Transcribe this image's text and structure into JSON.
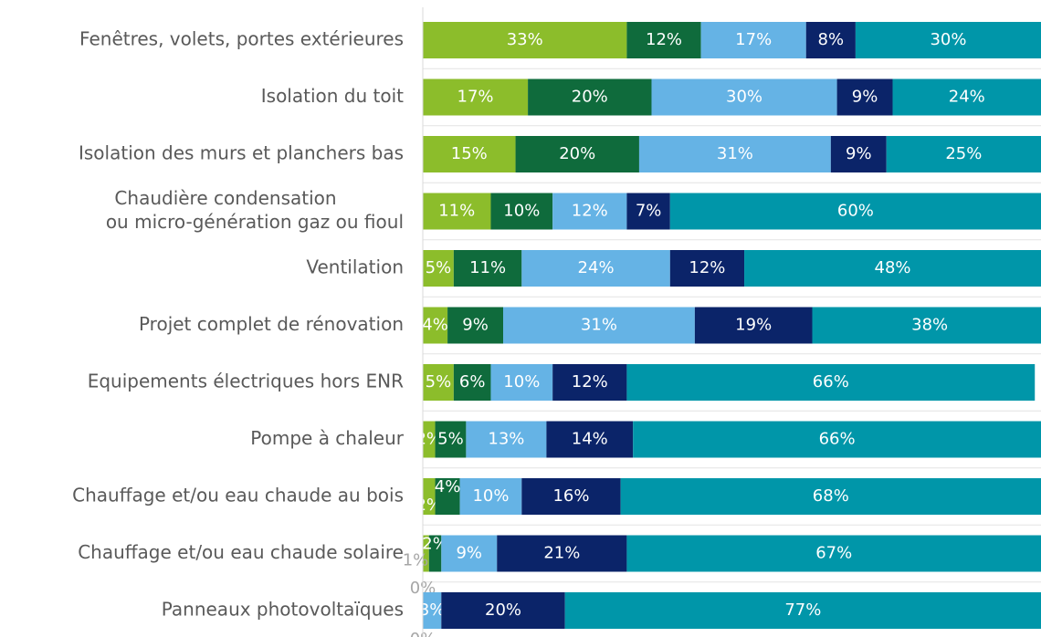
{
  "chart_data": {
    "type": "stacked-bar-horizontal",
    "categories": [
      "Fenêtres, volets, portes extérieures",
      "Isolation du toit",
      "Isolation des murs et planchers bas",
      [
        "Chaudière condensation",
        "ou micro-génération gaz ou fioul"
      ],
      "Ventilation",
      "Projet complet de rénovation",
      "Equipements électriques hors ENR",
      "Pompe à chaleur",
      "Chauffage et/ou eau chaude au bois",
      "Chauffage et/ou eau chaude solaire",
      "Panneaux photovoltaïques"
    ],
    "xlim": [
      0,
      100
    ],
    "series": [
      {
        "color": "#8cbd2b",
        "values": [
          33,
          17,
          15,
          11,
          5,
          4,
          5,
          2,
          2,
          1,
          0
        ],
        "value_labels": [
          "33%",
          "17%",
          "15%",
          "11%",
          "5%",
          "4%",
          "5%",
          "2%",
          "2%",
          "1%",
          "0%"
        ]
      },
      {
        "color": "#0f6b3c",
        "values": [
          12,
          20,
          20,
          10,
          11,
          9,
          6,
          5,
          4,
          2,
          0
        ],
        "value_labels": [
          "12%",
          "20%",
          "20%",
          "10%",
          "11%",
          "9%",
          "6%",
          "5%",
          "4%",
          "2%",
          "0%"
        ]
      },
      {
        "color": "#65b3e5",
        "values": [
          17,
          30,
          31,
          12,
          24,
          31,
          10,
          13,
          10,
          9,
          3
        ],
        "value_labels": [
          "17%",
          "30%",
          "31%",
          "12%",
          "24%",
          "31%",
          "10%",
          "13%",
          "10%",
          "9%",
          "3%"
        ]
      },
      {
        "color": "#0b2469",
        "values": [
          8,
          9,
          9,
          7,
          12,
          19,
          12,
          14,
          16,
          21,
          20
        ],
        "value_labels": [
          "8%",
          "9%",
          "9%",
          "7%",
          "12%",
          "19%",
          "12%",
          "14%",
          "16%",
          "21%",
          "20%"
        ]
      },
      {
        "color": "#0096a9",
        "values": [
          30,
          24,
          25,
          60,
          48,
          38,
          66,
          66,
          68,
          67,
          77
        ],
        "value_labels": [
          "30%",
          "24%",
          "25%",
          "60%",
          "48%",
          "38%",
          "66%",
          "66%",
          "68%",
          "67%",
          "77%"
        ]
      }
    ]
  }
}
